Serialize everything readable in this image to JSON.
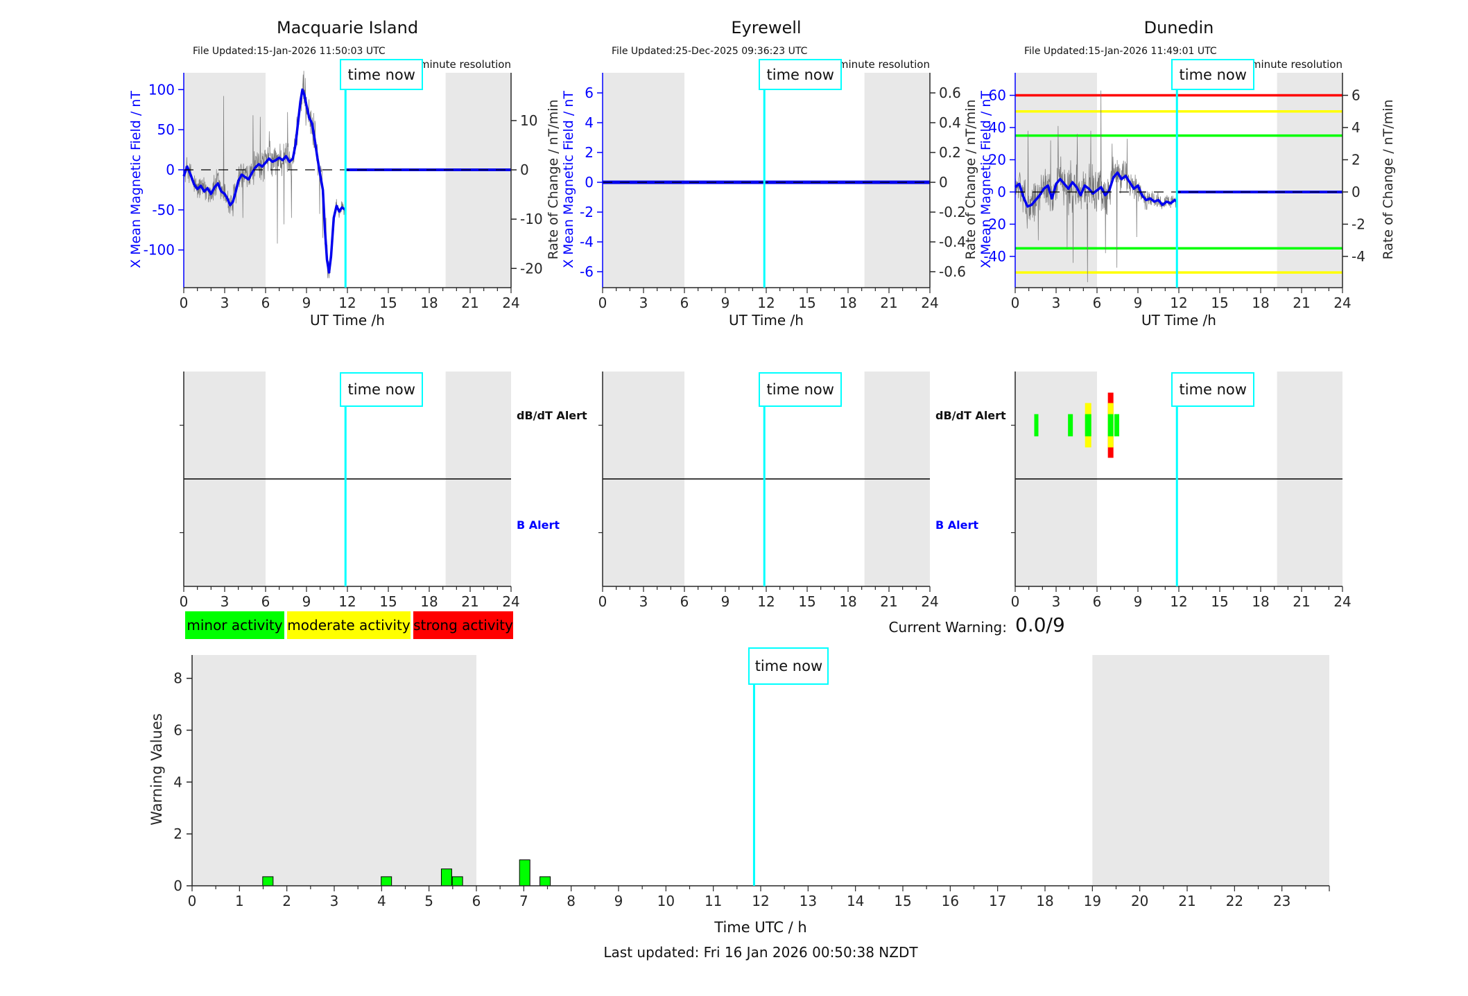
{
  "page": {
    "time_now_label": "time now",
    "footer": "Last updated: Fri 16 Jan 2026 00:50:38 NZDT"
  },
  "legend": {
    "items": [
      {
        "label": "minor activity",
        "color": "#00ff00"
      },
      {
        "label": "moderate activity",
        "color": "#ffff00"
      },
      {
        "label": "strong activity",
        "color": "#ff0000"
      }
    ]
  },
  "current_warning": {
    "label": "Current Warning:",
    "value": "0.0/9"
  },
  "alert_labels": {
    "dbdt": "dB/dT Alert",
    "b": "B Alert"
  },
  "colors": {
    "trace_blue": "#0000ee",
    "noise_gray": "#757575",
    "night_shade": "#e8e8e8",
    "time_now_cyan": "#00ffff",
    "bar_green": "#00ff00",
    "minor": "#00ff00",
    "moderate": "#ffff00",
    "strong": "#ff0000"
  },
  "chart_data": [
    {
      "id": "macquarie",
      "type": "line",
      "title": "Macquarie Island",
      "file_updated": "File Updated:15-Jan-2026 11:50:03 UTC",
      "resolution": "minute resolution",
      "x_axis": {
        "label": "UT Time /h",
        "lim": [
          0,
          24
        ],
        "ticks": [
          0,
          3,
          6,
          9,
          12,
          15,
          18,
          21,
          24
        ]
      },
      "y_left": {
        "label": "X Mean Magnetic Field / nT",
        "lim": [
          -147,
          121
        ],
        "ticks": [
          100,
          50,
          0,
          -50,
          -100
        ]
      },
      "y_right": {
        "label": "Rate of Change / nT/min",
        "lim": [
          -23.9,
          19.7
        ],
        "ticks": [
          10,
          0,
          -10,
          -20
        ]
      },
      "night_shading": [
        [
          0,
          6
        ],
        [
          19.2,
          24
        ]
      ],
      "time_now": 11.86,
      "zero_line": true,
      "series": {
        "hours": [
          0,
          0.25,
          0.5,
          0.75,
          1,
          1.25,
          1.5,
          1.75,
          2,
          2.25,
          2.5,
          2.75,
          3,
          3.2,
          3.4,
          3.6,
          3.8,
          4,
          4.25,
          4.5,
          4.75,
          5,
          5.25,
          5.5,
          5.75,
          6,
          6.25,
          6.5,
          6.75,
          7,
          7.25,
          7.5,
          7.75,
          8,
          8.2,
          8.4,
          8.55,
          8.7,
          8.85,
          9,
          9.2,
          9.4,
          9.6,
          9.8,
          10,
          10.2,
          10.35,
          10.5,
          10.65,
          10.8,
          11,
          11.2,
          11.4,
          11.6,
          11.86
        ],
        "values": [
          -8,
          4,
          -6,
          -18,
          -24,
          -20,
          -27,
          -23,
          -30,
          -22,
          -17,
          -27,
          -30,
          -36,
          -44,
          -40,
          -28,
          -14,
          -6,
          -9,
          -12,
          -4,
          3,
          7,
          4,
          9,
          14,
          10,
          12,
          15,
          12,
          17,
          10,
          14,
          32,
          62,
          85,
          100,
          93,
          80,
          65,
          58,
          38,
          15,
          -6,
          -25,
          -75,
          -112,
          -128,
          -108,
          -60,
          -45,
          -52,
          -47,
          -50
        ]
      },
      "forecast": {
        "from": 11.86,
        "to": 24,
        "value": 0
      },
      "noise": {
        "seed": 12345,
        "step": 0.022,
        "range": [
          0,
          11.84
        ],
        "envelope": [
          [
            0,
            16
          ],
          [
            1,
            20
          ],
          [
            2,
            22
          ],
          [
            2.6,
            26
          ],
          [
            3,
            22
          ],
          [
            4,
            24
          ],
          [
            5,
            26
          ],
          [
            6,
            26
          ],
          [
            7,
            28
          ],
          [
            8,
            26
          ],
          [
            9,
            30
          ],
          [
            10,
            28
          ],
          [
            10.7,
            24
          ],
          [
            11,
            16
          ],
          [
            11.5,
            12
          ],
          [
            11.84,
            10
          ]
        ],
        "spikes": [
          [
            2.92,
            92
          ],
          [
            3.6,
            -58
          ],
          [
            4.34,
            -60
          ],
          [
            5.08,
            68
          ],
          [
            5.62,
            66
          ],
          [
            6.28,
            48
          ],
          [
            6.86,
            -92
          ],
          [
            7.34,
            -68
          ],
          [
            7.62,
            72
          ],
          [
            7.9,
            -60
          ],
          [
            8.34,
            60
          ],
          [
            8.96,
            55
          ],
          [
            9.32,
            74
          ],
          [
            9.64,
            58
          ],
          [
            9.96,
            -55
          ],
          [
            10.18,
            -85
          ],
          [
            10.42,
            -60
          ]
        ]
      }
    },
    {
      "id": "eyrewell",
      "type": "line",
      "title": "Eyrewell",
      "file_updated": "File Updated:25-Dec-2025 09:36:23 UTC",
      "resolution": "minute resolution",
      "x_axis": {
        "label": "UT Time /h",
        "lim": [
          0,
          24
        ],
        "ticks": [
          0,
          3,
          6,
          9,
          12,
          15,
          18,
          21,
          24
        ]
      },
      "y_left": {
        "label": "X Mean Magnetic Field / nT",
        "lim": [
          -7.07,
          7.35
        ],
        "ticks": [
          6,
          4,
          2,
          0,
          -2,
          -4,
          -6
        ]
      },
      "y_right": {
        "label": "Rate of Change / nT/min",
        "lim": [
          -0.707,
          0.735
        ],
        "ticks": [
          0.6,
          0.4,
          0.2,
          0,
          -0.2,
          -0.4,
          -0.6
        ]
      },
      "night_shading": [
        [
          0,
          6
        ],
        [
          19.2,
          24
        ]
      ],
      "time_now": 11.86,
      "zero_line": true,
      "series": {
        "hours": [
          0,
          24
        ],
        "values": [
          0,
          0
        ]
      },
      "line_width": 5
    },
    {
      "id": "dunedin",
      "type": "line",
      "title": "Dunedin",
      "file_updated": "File Updated:15-Jan-2026 11:49:01 UTC",
      "resolution": "minute resolution",
      "x_axis": {
        "label": "UT Time /h",
        "lim": [
          0,
          24
        ],
        "ticks": [
          0,
          3,
          6,
          9,
          12,
          15,
          18,
          21,
          24
        ]
      },
      "y_left": {
        "label": "X Mean Magnetic Field / nT",
        "lim": [
          -59.4,
          74
        ],
        "ticks": [
          60,
          40,
          20,
          0,
          -20,
          -40
        ]
      },
      "y_right": {
        "label": "Rate of Change / nT/min",
        "lim": [
          -5.94,
          7.4
        ],
        "ticks": [
          6,
          4,
          2,
          0,
          -2,
          -4
        ]
      },
      "night_shading": [
        [
          0,
          6
        ],
        [
          19.2,
          24
        ]
      ],
      "time_now": 11.86,
      "zero_line": true,
      "thresholds": [
        {
          "value": 60,
          "color": "#ff0000"
        },
        {
          "value": 50,
          "color": "#ffff00"
        },
        {
          "value": 35,
          "color": "#00ff00"
        },
        {
          "value": -35,
          "color": "#00ff00"
        },
        {
          "value": -50,
          "color": "#ffff00"
        }
      ],
      "series": {
        "hours": [
          0,
          0.3,
          0.6,
          0.9,
          1.2,
          1.5,
          1.8,
          2.1,
          2.4,
          2.7,
          3,
          3.3,
          3.6,
          3.9,
          4.2,
          4.5,
          4.8,
          5.1,
          5.4,
          5.7,
          6,
          6.3,
          6.6,
          6.9,
          7.2,
          7.5,
          7.8,
          8.1,
          8.4,
          8.7,
          9,
          9.3,
          9.6,
          9.9,
          10.2,
          10.5,
          10.8,
          11.1,
          11.4,
          11.7,
          11.86
        ],
        "values": [
          3,
          5,
          -3,
          -9,
          -8,
          -5,
          -2,
          2,
          4,
          -4,
          5,
          8,
          5,
          2,
          6,
          3,
          -2,
          4,
          2,
          -1,
          1,
          3,
          -2,
          1,
          9,
          12,
          8,
          10,
          6,
          2,
          4,
          -2,
          -5,
          -4,
          -6,
          -5,
          -8,
          -6,
          -7,
          -5,
          -6
        ]
      },
      "forecast": {
        "from": 11.86,
        "to": 24,
        "value": 0
      },
      "noise": {
        "seed": 777,
        "step": 0.022,
        "range": [
          0,
          11.8
        ],
        "envelope": [
          [
            0,
            12
          ],
          [
            0.8,
            16
          ],
          [
            1.6,
            14
          ],
          [
            2.4,
            16
          ],
          [
            3.2,
            18
          ],
          [
            4,
            20
          ],
          [
            4.8,
            16
          ],
          [
            5.6,
            20
          ],
          [
            6.4,
            18
          ],
          [
            7.2,
            14
          ],
          [
            8,
            13
          ],
          [
            8.8,
            11
          ],
          [
            9.6,
            8
          ],
          [
            10.4,
            6
          ],
          [
            11.2,
            6
          ],
          [
            11.8,
            5
          ]
        ],
        "spikes": [
          [
            0.95,
            38
          ],
          [
            1.7,
            -30
          ],
          [
            2.6,
            32
          ],
          [
            3.15,
            41
          ],
          [
            3.8,
            -35
          ],
          [
            4.25,
            -44
          ],
          [
            4.55,
            36
          ],
          [
            5.3,
            -56
          ],
          [
            5.55,
            38
          ],
          [
            6.3,
            63
          ],
          [
            6.62,
            -38
          ],
          [
            7.1,
            30
          ],
          [
            7.45,
            -47
          ],
          [
            8.2,
            33
          ],
          [
            8.9,
            -28
          ]
        ]
      }
    },
    {
      "id": "alerts-macquarie",
      "type": "alert-timeline",
      "x_axis": {
        "lim": [
          0,
          24
        ],
        "ticks": [
          0,
          3,
          6,
          9,
          12,
          15,
          18,
          21,
          24
        ]
      },
      "night_shading": [
        [
          0,
          6
        ],
        [
          19.2,
          24
        ]
      ],
      "time_now": 11.86,
      "bars": []
    },
    {
      "id": "alerts-eyrewell",
      "type": "alert-timeline",
      "x_axis": {
        "lim": [
          0,
          24
        ],
        "ticks": [
          0,
          3,
          6,
          9,
          12,
          15,
          18,
          21,
          24
        ]
      },
      "night_shading": [
        [
          0,
          6
        ],
        [
          19.2,
          24
        ]
      ],
      "time_now": 11.86,
      "bars": []
    },
    {
      "id": "alerts-dunedin",
      "type": "alert-timeline",
      "x_axis": {
        "lim": [
          0,
          24
        ],
        "ticks": [
          0,
          3,
          6,
          9,
          12,
          15,
          18,
          21,
          24
        ]
      },
      "night_shading": [
        [
          0,
          6
        ],
        [
          19.2,
          24
        ]
      ],
      "time_now": 11.86,
      "bars": [
        {
          "hour": 1.55,
          "severity": "minor",
          "width": 6
        },
        {
          "hour": 4.05,
          "severity": "minor",
          "width": 7
        },
        {
          "hour": 5.35,
          "severity": "moderate",
          "width": 9
        },
        {
          "hour": 7.0,
          "severity": "strong",
          "width": 8
        },
        {
          "hour": 7.45,
          "severity": "minor",
          "width": 7
        }
      ]
    },
    {
      "id": "warning-values",
      "type": "bar",
      "x_axis": {
        "label": "Time UTC / h",
        "lim": [
          0,
          24
        ],
        "tick_labels": [
          0,
          1,
          2,
          3,
          4,
          5,
          6,
          7,
          8,
          9,
          10,
          11,
          12,
          13,
          14,
          15,
          16,
          17,
          18,
          19,
          20,
          21,
          22,
          23
        ]
      },
      "y_axis": {
        "label": "Warning Values",
        "lim": [
          0,
          8.9
        ],
        "ticks": [
          0,
          2,
          4,
          6,
          8
        ]
      },
      "night_shading": [
        [
          0,
          6
        ],
        [
          19,
          24
        ]
      ],
      "time_now": 11.86,
      "bars": [
        {
          "hour": 1.6,
          "value": 0.35
        },
        {
          "hour": 4.1,
          "value": 0.35
        },
        {
          "hour": 5.37,
          "value": 0.65
        },
        {
          "hour": 5.6,
          "value": 0.35
        },
        {
          "hour": 7.02,
          "value": 1.0
        },
        {
          "hour": 7.45,
          "value": 0.35
        }
      ]
    }
  ]
}
